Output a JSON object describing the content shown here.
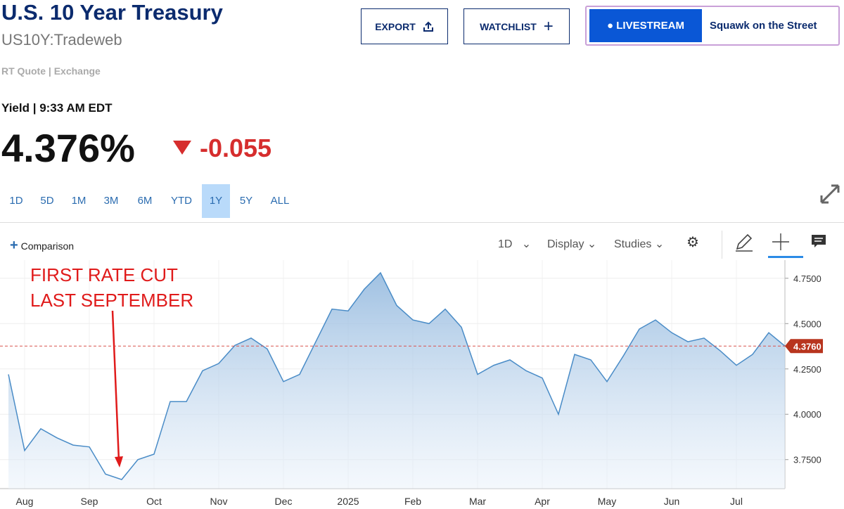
{
  "header": {
    "title": "U.S. 10 Year Treasury",
    "symbol": "US10Y:Tradeweb",
    "quote_source": "RT Quote | Exchange",
    "time_label": "Yield | 9:33 AM EDT",
    "price": "4.376%",
    "change": "-0.055"
  },
  "buttons": {
    "export": "EXPORT",
    "watchlist": "WATCHLIST",
    "livestream": "LIVESTREAM",
    "show": "Squawk on the Street"
  },
  "ranges": [
    "1D",
    "5D",
    "1M",
    "3M",
    "6M",
    "YTD",
    "1Y",
    "5Y",
    "ALL"
  ],
  "toolbar": {
    "comparison": "Comparison",
    "interval": "1D",
    "display": "Display",
    "studies": "Studies"
  },
  "chart_data": {
    "type": "line",
    "annotation": [
      "FIRST RATE CUT",
      "LAST SEPTEMBER"
    ],
    "categories": [
      null,
      "Aug",
      null,
      null,
      null,
      "Sep",
      null,
      null,
      null,
      "Oct",
      null,
      null,
      null,
      "Nov",
      null,
      null,
      null,
      "Dec",
      null,
      null,
      null,
      "2025",
      null,
      null,
      null,
      "Feb",
      null,
      null,
      null,
      "Mar",
      null,
      null,
      null,
      "Apr",
      null,
      null,
      null,
      "May",
      null,
      null,
      null,
      "Jun",
      null,
      null,
      null,
      "Jul",
      null,
      null,
      null
    ],
    "series": [
      {
        "color": "#4a8cc7",
        "values": [
          4.22,
          3.8,
          3.92,
          3.87,
          3.83,
          3.82,
          3.67,
          3.64,
          3.75,
          3.78,
          4.07,
          4.07,
          4.24,
          4.28,
          4.38,
          4.42,
          4.36,
          4.18,
          4.22,
          4.4,
          4.58,
          4.57,
          4.69,
          4.78,
          4.6,
          4.52,
          4.5,
          4.58,
          4.48,
          4.22,
          4.27,
          4.3,
          4.24,
          4.2,
          4.0,
          4.33,
          4.3,
          4.18,
          4.32,
          4.47,
          4.52,
          4.45,
          4.4,
          4.42,
          4.35,
          4.27,
          4.33,
          4.45,
          4.376
        ]
      }
    ],
    "current": {
      "value": 4.376,
      "label": "4.3760"
    },
    "ylim": [
      3.59,
      4.85
    ],
    "yticks": [
      {
        "value": 3.75,
        "label": "3.7500"
      },
      {
        "value": 4,
        "label": "4.0000"
      },
      {
        "value": 4.25,
        "label": "4.2500"
      },
      {
        "value": 4.5,
        "label": "4.5000"
      },
      {
        "value": 4.75,
        "label": "4.7500"
      }
    ],
    "grid": true
  }
}
